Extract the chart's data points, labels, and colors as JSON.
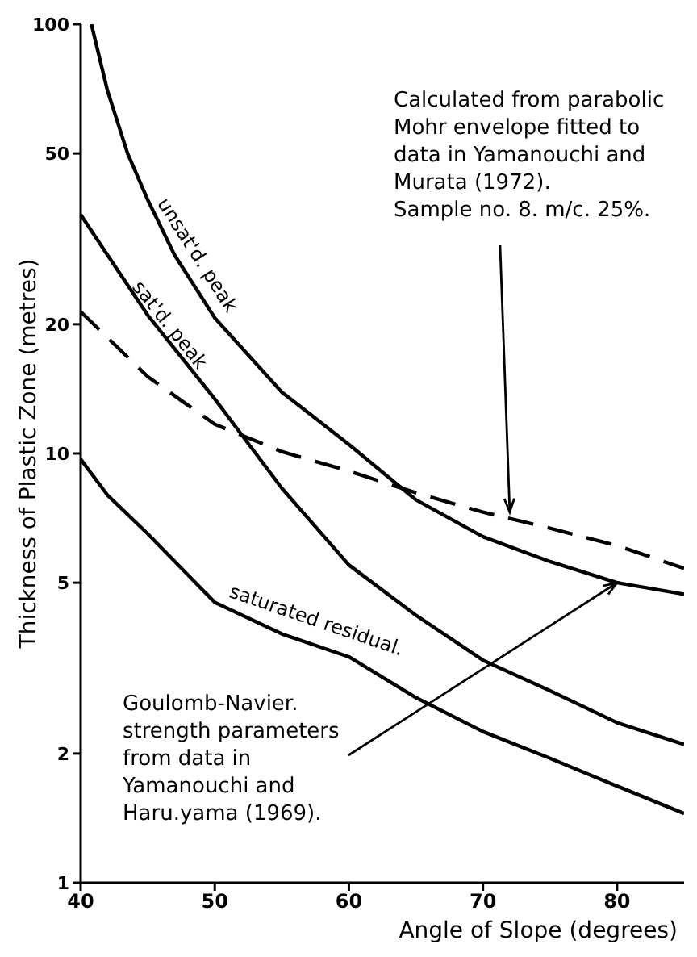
{
  "chart_data": {
    "type": "line",
    "xlabel": "Angle of Slope (degrees)",
    "ylabel": "Thickness of Plastic Zone (metres)",
    "xlim": [
      40,
      85
    ],
    "xticks": [
      40,
      50,
      60,
      70,
      80
    ],
    "ylim": [
      1,
      100
    ],
    "yticks": [
      1,
      2,
      5,
      10,
      20,
      50,
      100
    ],
    "log": true,
    "line_style": "solid",
    "series": [
      {
        "name": "unsat'd. peak",
        "color": "#000000",
        "x": [
          40.8,
          42,
          43.5,
          45,
          47,
          50,
          55,
          60,
          65,
          70,
          75,
          80,
          85
        ],
        "values": [
          100,
          70,
          50,
          39,
          29,
          20.7,
          13.9,
          10.5,
          7.8,
          6.4,
          5.6,
          5.0,
          4.7
        ]
      },
      {
        "name": "sat'd. peak",
        "color": "#000000",
        "x": [
          40,
          42,
          45,
          50,
          55,
          60,
          65,
          70,
          75,
          80,
          85
        ],
        "values": [
          36,
          29,
          21,
          13.4,
          8.3,
          5.5,
          4.2,
          3.3,
          2.8,
          2.36,
          2.1
        ]
      },
      {
        "name": "saturated residual.",
        "color": "#000000",
        "x": [
          40,
          42,
          45,
          50,
          55,
          60,
          65,
          70,
          75,
          80,
          85
        ],
        "values": [
          9.7,
          8.0,
          6.5,
          4.5,
          3.8,
          3.36,
          2.7,
          2.25,
          1.95,
          1.68,
          1.45
        ]
      },
      {
        "color": "#000000",
        "line_style": "dashed",
        "x": [
          40,
          45,
          50,
          55,
          60,
          65,
          70,
          75,
          80,
          85
        ],
        "values": [
          21.4,
          15.1,
          11.7,
          10.1,
          9.1,
          8.1,
          7.3,
          6.7,
          6.1,
          5.4
        ]
      }
    ],
    "annotations": [
      {
        "text": "Calculated from parabolic\nMohr envelope fitted to\ndata in Yamanouchi and\nMurata (1972).\nSample no. 8.  m/c. 25%.",
        "x": 72,
        "y": 7.3
      },
      {
        "text": "Goulomb-Navier.\nstrength parameters\nfrom data in\nYamanouchi and\nHaru.yama (1969).",
        "x": 80,
        "y": 5.0
      }
    ]
  }
}
